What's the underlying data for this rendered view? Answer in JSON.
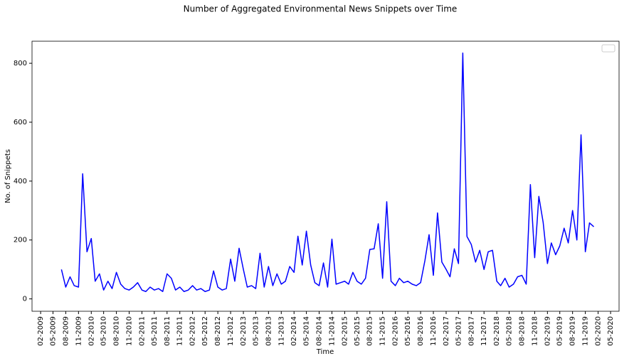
{
  "chart_data": {
    "type": "line",
    "title": "Number of Aggregated Environmental News Snippets over Time",
    "x_label": "Time",
    "y_label": "No. of Snippets",
    "x": [
      "2009-07",
      "2009-08",
      "2009-09",
      "2009-10",
      "2009-11",
      "2009-12",
      "2010-01",
      "2010-02",
      "2010-03",
      "2010-04",
      "2010-05",
      "2010-06",
      "2010-07",
      "2010-08",
      "2010-09",
      "2010-10",
      "2010-11",
      "2010-12",
      "2011-01",
      "2011-02",
      "2011-03",
      "2011-04",
      "2011-05",
      "2011-06",
      "2011-07",
      "2011-08",
      "2011-09",
      "2011-10",
      "2011-11",
      "2011-12",
      "2012-01",
      "2012-02",
      "2012-03",
      "2012-04",
      "2012-05",
      "2012-06",
      "2012-07",
      "2012-08",
      "2012-09",
      "2012-10",
      "2012-11",
      "2012-12",
      "2013-01",
      "2013-02",
      "2013-03",
      "2013-04",
      "2013-05",
      "2013-06",
      "2013-07",
      "2013-08",
      "2013-09",
      "2013-10",
      "2013-11",
      "2013-12",
      "2014-01",
      "2014-02",
      "2014-03",
      "2014-04",
      "2014-05",
      "2014-06",
      "2014-07",
      "2014-08",
      "2014-09",
      "2014-10",
      "2014-11",
      "2014-12",
      "2015-01",
      "2015-02",
      "2015-03",
      "2015-04",
      "2015-05",
      "2015-06",
      "2015-07",
      "2015-08",
      "2015-09",
      "2015-10",
      "2015-11",
      "2015-12",
      "2016-01",
      "2016-02",
      "2016-03",
      "2016-04",
      "2016-05",
      "2016-06",
      "2016-07",
      "2016-08",
      "2016-09",
      "2016-10",
      "2016-11",
      "2016-12",
      "2017-01",
      "2017-02",
      "2017-03",
      "2017-04",
      "2017-05",
      "2017-06",
      "2017-07",
      "2017-08",
      "2017-09",
      "2017-10",
      "2017-11",
      "2017-12",
      "2018-01",
      "2018-02",
      "2018-03",
      "2018-04",
      "2018-05",
      "2018-06",
      "2018-07",
      "2018-08",
      "2018-09",
      "2018-10",
      "2018-11",
      "2018-12",
      "2019-01",
      "2019-02",
      "2019-03",
      "2019-04",
      "2019-05",
      "2019-06",
      "2019-07",
      "2019-08",
      "2019-09",
      "2019-10",
      "2019-11",
      "2019-12",
      "2020-01"
    ],
    "series": [
      {
        "color": "#0000ff",
        "values": [
          100,
          40,
          75,
          45,
          40,
          425,
          160,
          205,
          60,
          85,
          30,
          60,
          35,
          90,
          50,
          35,
          30,
          40,
          55,
          30,
          25,
          40,
          30,
          35,
          25,
          85,
          70,
          30,
          40,
          25,
          30,
          45,
          30,
          35,
          25,
          30,
          95,
          40,
          30,
          35,
          135,
          60,
          172,
          100,
          40,
          45,
          35,
          155,
          40,
          110,
          45,
          85,
          50,
          60,
          110,
          90,
          213,
          115,
          230,
          115,
          55,
          45,
          122,
          40,
          203,
          50,
          55,
          60,
          50,
          90,
          60,
          50,
          70,
          168,
          170,
          255,
          70,
          330,
          60,
          45,
          70,
          55,
          60,
          50,
          45,
          55,
          130,
          218,
          80,
          292,
          125,
          100,
          75,
          170,
          120,
          835,
          212,
          185,
          125,
          165,
          100,
          160,
          165,
          60,
          45,
          70,
          40,
          50,
          75,
          80,
          50,
          388,
          140,
          348,
          260,
          120,
          190,
          150,
          180,
          240,
          190,
          300,
          200,
          557,
          160,
          258,
          245
        ]
      }
    ],
    "xlim": [
      "2008-12",
      "2020-07"
    ],
    "xticks": [
      {
        "value": "2009-02",
        "label": "02-2009"
      },
      {
        "value": "2009-05",
        "label": "05-2009"
      },
      {
        "value": "2009-08",
        "label": "08-2009"
      },
      {
        "value": "2009-11",
        "label": "11-2009"
      },
      {
        "value": "2010-02",
        "label": "02-2010"
      },
      {
        "value": "2010-05",
        "label": "05-2010"
      },
      {
        "value": "2010-08",
        "label": "08-2010"
      },
      {
        "value": "2010-11",
        "label": "11-2010"
      },
      {
        "value": "2011-02",
        "label": "02-2011"
      },
      {
        "value": "2011-05",
        "label": "05-2011"
      },
      {
        "value": "2011-08",
        "label": "08-2011"
      },
      {
        "value": "2011-11",
        "label": "11-2011"
      },
      {
        "value": "2012-02",
        "label": "02-2012"
      },
      {
        "value": "2012-05",
        "label": "05-2012"
      },
      {
        "value": "2012-08",
        "label": "08-2012"
      },
      {
        "value": "2012-11",
        "label": "11-2012"
      },
      {
        "value": "2013-02",
        "label": "02-2013"
      },
      {
        "value": "2013-05",
        "label": "05-2013"
      },
      {
        "value": "2013-08",
        "label": "08-2013"
      },
      {
        "value": "2013-11",
        "label": "11-2013"
      },
      {
        "value": "2014-02",
        "label": "02-2014"
      },
      {
        "value": "2014-05",
        "label": "05-2014"
      },
      {
        "value": "2014-08",
        "label": "08-2014"
      },
      {
        "value": "2014-11",
        "label": "11-2014"
      },
      {
        "value": "2015-02",
        "label": "02-2015"
      },
      {
        "value": "2015-05",
        "label": "05-2015"
      },
      {
        "value": "2015-08",
        "label": "08-2015"
      },
      {
        "value": "2015-11",
        "label": "11-2015"
      },
      {
        "value": "2016-02",
        "label": "02-2016"
      },
      {
        "value": "2016-05",
        "label": "05-2016"
      },
      {
        "value": "2016-08",
        "label": "08-2016"
      },
      {
        "value": "2016-11",
        "label": "11-2016"
      },
      {
        "value": "2017-02",
        "label": "02-2017"
      },
      {
        "value": "2017-05",
        "label": "05-2017"
      },
      {
        "value": "2017-08",
        "label": "08-2017"
      },
      {
        "value": "2017-11",
        "label": "11-2017"
      },
      {
        "value": "2018-02",
        "label": "02-2018"
      },
      {
        "value": "2018-05",
        "label": "05-2018"
      },
      {
        "value": "2018-08",
        "label": "08-2018"
      },
      {
        "value": "2018-11",
        "label": "11-2018"
      },
      {
        "value": "2019-02",
        "label": "02-2019"
      },
      {
        "value": "2019-05",
        "label": "05-2019"
      },
      {
        "value": "2019-08",
        "label": "08-2019"
      },
      {
        "value": "2019-11",
        "label": "11-2019"
      },
      {
        "value": "2020-02",
        "label": "02-2020"
      },
      {
        "value": "2020-05",
        "label": "05-2020"
      }
    ],
    "ylim": [
      -42,
      875
    ],
    "yticks": [
      0,
      200,
      400,
      600,
      800
    ],
    "grid": false,
    "legend": "upper right"
  }
}
